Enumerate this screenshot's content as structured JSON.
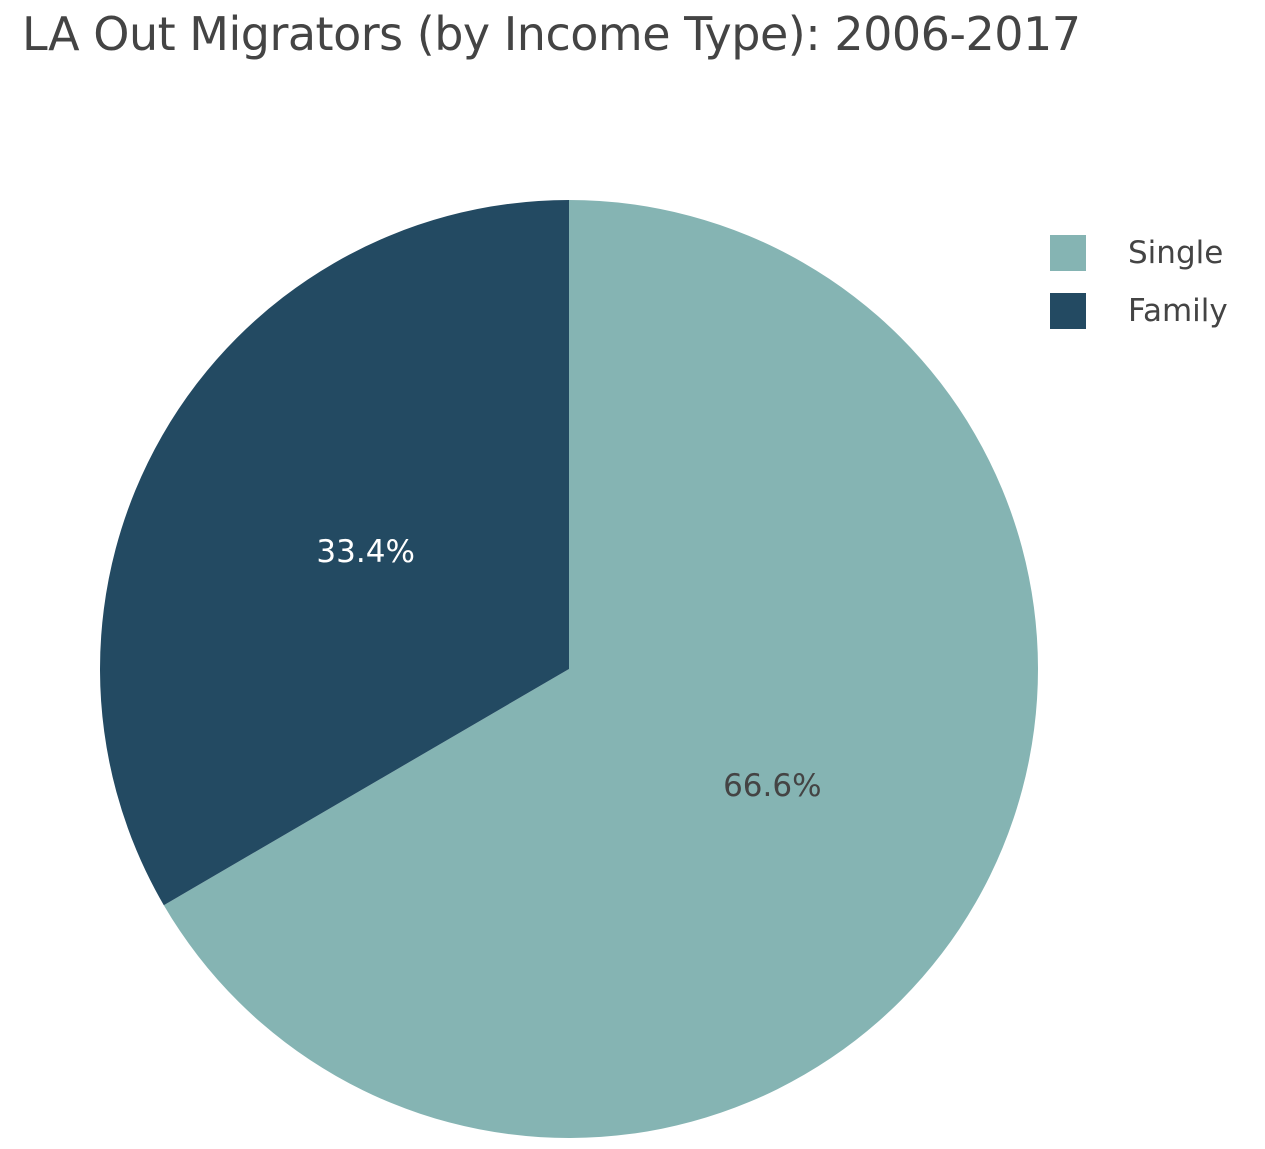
{
  "chart_data": {
    "type": "pie",
    "title": "LA Out Migrators (by Income Type): 2006-2017",
    "slices": [
      {
        "name": "Single",
        "value": 66.6,
        "label": "66.6%",
        "color": "#85b4b3",
        "label_color": "#444444"
      },
      {
        "name": "Family",
        "value": 33.4,
        "label": "33.4%",
        "color": "#234a62",
        "label_color": "#ffffff"
      }
    ],
    "legend": {
      "placement": "top-right",
      "entries": [
        "Single",
        "Family"
      ]
    }
  }
}
